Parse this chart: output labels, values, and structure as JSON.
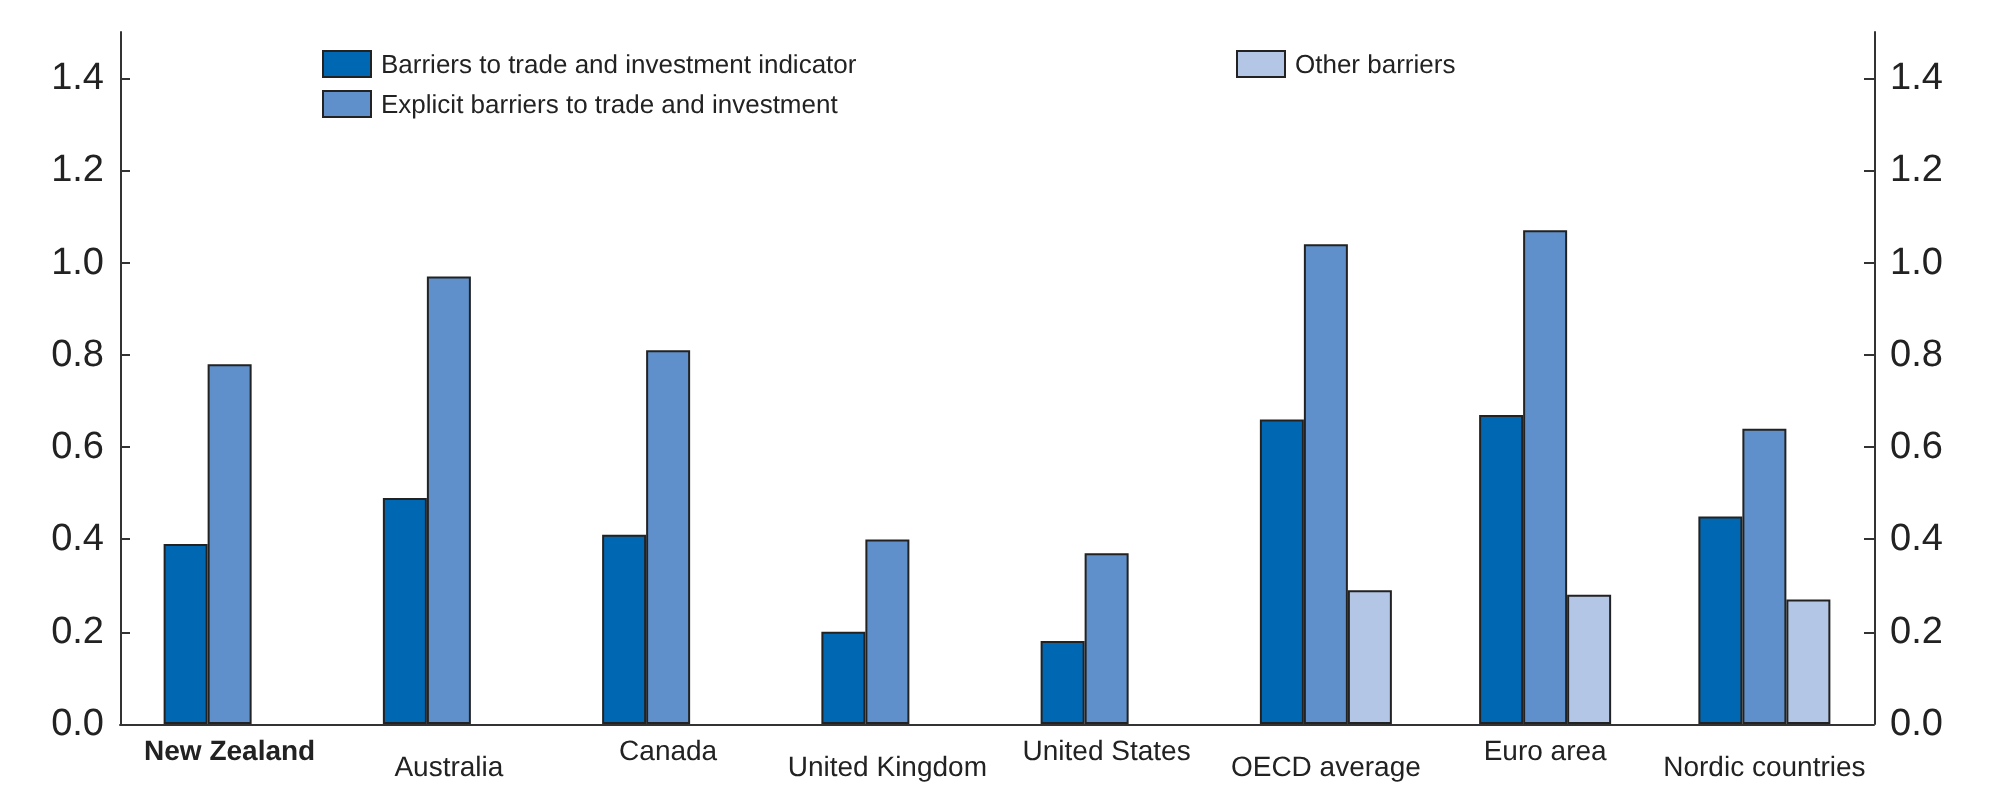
{
  "chart_data": {
    "type": "bar",
    "categories": [
      "New Zealand",
      "Australia",
      "Canada",
      "United Kingdom",
      "United States",
      "OECD average",
      "Euro area",
      "Nordic countries"
    ],
    "series": [
      {
        "name": "Barriers to trade and investment indicator",
        "color": "#0068b3",
        "values": [
          0.39,
          0.49,
          0.41,
          0.2,
          0.18,
          0.66,
          0.67,
          0.45
        ]
      },
      {
        "name": "Explicit barriers to trade and investment",
        "color": "#5f90cb",
        "values": [
          0.78,
          0.97,
          0.81,
          0.4,
          0.37,
          1.04,
          1.07,
          0.64
        ]
      },
      {
        "name": "Other barriers",
        "color": "#b3c6e6",
        "values": [
          null,
          null,
          null,
          null,
          null,
          0.29,
          0.28,
          0.27
        ]
      }
    ],
    "ylim": [
      0,
      1.5
    ],
    "yticks": [
      {
        "value": 0,
        "label": "0.0"
      },
      0.2,
      0.4,
      0.6,
      0.8,
      {
        "value": 1,
        "label": "1.0"
      },
      1.2,
      1.4
    ],
    "y2lim": [
      0,
      1.5
    ],
    "y2ticks": [
      {
        "value": 0,
        "label": "0.0"
      },
      0.2,
      0.4,
      0.6,
      0.8,
      {
        "value": 1,
        "label": "1.0"
      },
      1.2,
      1.4
    ],
    "grid": false,
    "legend": "top"
  }
}
